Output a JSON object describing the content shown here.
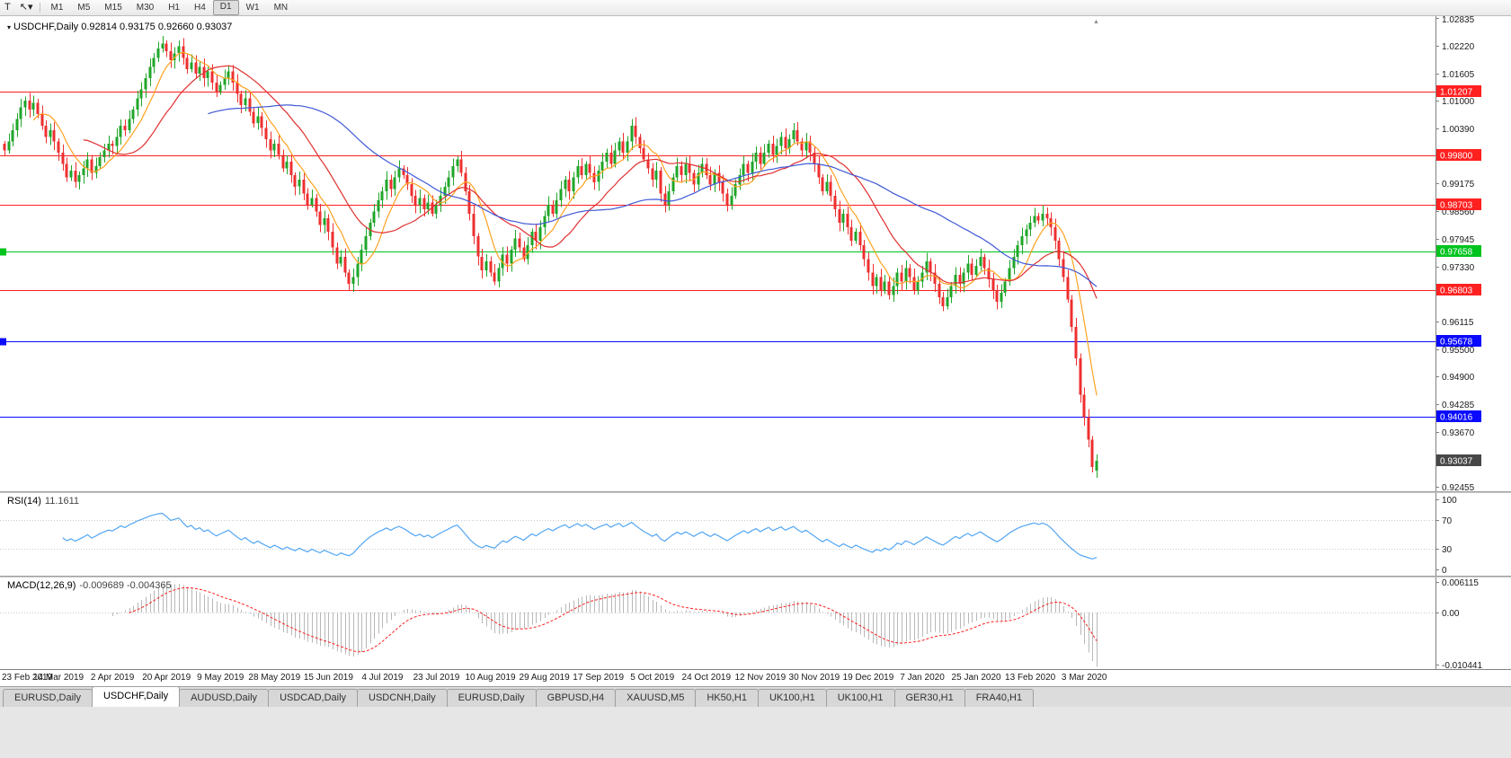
{
  "toolbar": {
    "icons": [
      {
        "name": "pointer-tool-icon",
        "glyph": "T"
      },
      {
        "name": "cursor-dropdown-icon",
        "glyph": "↖▾"
      }
    ],
    "timeframes": [
      "M1",
      "M5",
      "M15",
      "M30",
      "H1",
      "H4",
      "D1",
      "W1",
      "MN"
    ],
    "active_timeframe": "D1"
  },
  "chart_data": {
    "type": "candlestick",
    "symbol": "USDCHF,Daily",
    "quote": {
      "open": 0.92814,
      "high": 0.93175,
      "low": 0.9266,
      "close": 0.93037
    },
    "price_range": {
      "min": 0.9236,
      "max": 1.0289
    },
    "y_ticks": [
      1.02835,
      1.0222,
      1.01605,
      1.01,
      1.0039,
      0.99175,
      0.9856,
      0.97945,
      0.9733,
      0.96115,
      0.955,
      0.949,
      0.94285,
      0.9367,
      0.92455
    ],
    "levels": [
      {
        "value": 1.01207,
        "color": "#ff2020",
        "left_marker": false
      },
      {
        "value": 0.998,
        "color": "#ff2020",
        "left_marker": false
      },
      {
        "value": 0.98703,
        "color": "#ff2020",
        "left_marker": false
      },
      {
        "value": 0.97658,
        "color": "#00c31e",
        "left_marker": true
      },
      {
        "value": 0.96803,
        "color": "#ff2020",
        "left_marker": false
      },
      {
        "value": 0.95678,
        "color": "#0a0aff",
        "left_marker": true
      },
      {
        "value": 0.94016,
        "color": "#0a0aff",
        "left_marker": false
      }
    ],
    "current_price": {
      "value": 0.93037,
      "box_color": "#474747"
    },
    "x_labels": [
      "23 Feb 2019",
      "14 Mar 2019",
      "2 Apr 2019",
      "20 Apr 2019",
      "9 May 2019",
      "28 May 2019",
      "15 Jun 2019",
      "4 Jul 2019",
      "23 Jul 2019",
      "10 Aug 2019",
      "29 Aug 2019",
      "17 Sep 2019",
      "5 Oct 2019",
      "24 Oct 2019",
      "12 Nov 2019",
      "30 Nov 2019",
      "19 Dec 2019",
      "7 Jan 2020",
      "25 Jan 2020",
      "13 Feb 2020",
      "3 Mar 2020"
    ],
    "bars_per_label": 13,
    "closes": [
      0.999,
      1.001,
      1.0035,
      1.006,
      1.0085,
      1.01,
      1.008,
      1.0095,
      1.007,
      1.0045,
      1.002,
      1.0035,
      1.001,
      0.9985,
      0.996,
      0.993,
      0.9945,
      0.992,
      0.9935,
      0.995,
      0.997,
      0.994,
      0.9955,
      0.9975,
      0.999,
      1.0005,
      1.0,
      1.002,
      1.0045,
      1.0035,
      1.006,
      1.008,
      1.0105,
      1.0125,
      1.015,
      1.0175,
      1.0195,
      1.0215,
      1.0226,
      1.021,
      1.019,
      1.0205,
      1.022,
      1.0195,
      1.017,
      1.0185,
      1.016,
      1.0175,
      1.015,
      1.0165,
      1.014,
      1.012,
      1.0135,
      1.015,
      1.0165,
      1.014,
      1.0115,
      1.009,
      1.0105,
      1.0075,
      1.005,
      1.0065,
      1.004,
      1.0015,
      0.999,
      1.0005,
      0.998,
      0.995,
      0.9965,
      0.9935,
      0.991,
      0.9925,
      0.9895,
      0.987,
      0.9885,
      0.9855,
      0.9825,
      0.984,
      0.981,
      0.9775,
      0.974,
      0.9755,
      0.972,
      0.9695,
      0.971,
      0.974,
      0.977,
      0.98,
      0.983,
      0.9855,
      0.988,
      0.99,
      0.9925,
      0.9905,
      0.993,
      0.995,
      0.9935,
      0.9915,
      0.989,
      0.987,
      0.9885,
      0.986,
      0.9875,
      0.985,
      0.987,
      0.989,
      0.991,
      0.993,
      0.9955,
      0.997,
      0.994,
      0.99,
      0.985,
      0.98,
      0.9755,
      0.9725,
      0.9745,
      0.972,
      0.97,
      0.973,
      0.976,
      0.974,
      0.977,
      0.9795,
      0.9775,
      0.975,
      0.978,
      0.981,
      0.979,
      0.982,
      0.9845,
      0.987,
      0.985,
      0.988,
      0.9905,
      0.9925,
      0.99,
      0.993,
      0.9955,
      0.9935,
      0.996,
      0.994,
      0.992,
      0.9945,
      0.9965,
      0.9985,
      0.996,
      0.999,
      1.001,
      0.9985,
      1.001,
      1.0045,
      1.002,
      0.9995,
      0.997,
      0.995,
      0.9925,
      0.9945,
      0.9895,
      0.987,
      0.99,
      0.993,
      0.9955,
      0.9935,
      0.996,
      0.994,
      0.9915,
      0.994,
      0.996,
      0.9935,
      0.9915,
      0.994,
      0.992,
      0.9895,
      0.987,
      0.989,
      0.9915,
      0.9935,
      0.996,
      0.994,
      0.9965,
      0.9985,
      0.996,
      0.9985,
      1.0005,
      0.998,
      1.0,
      1.002,
      0.9995,
      1.0015,
      1.0035,
      1.001,
      0.999,
      1.001,
      0.9985,
      0.996,
      0.993,
      0.99,
      0.992,
      0.989,
      0.986,
      0.983,
      0.985,
      0.982,
      0.979,
      0.981,
      0.978,
      0.975,
      0.972,
      0.969,
      0.971,
      0.968,
      0.97,
      0.967,
      0.969,
      0.972,
      0.97,
      0.973,
      0.971,
      0.968,
      0.97,
      0.972,
      0.9745,
      0.972,
      0.9695,
      0.9665,
      0.9645,
      0.9665,
      0.969,
      0.9715,
      0.9695,
      0.972,
      0.974,
      0.9715,
      0.9735,
      0.9755,
      0.973,
      0.9705,
      0.968,
      0.9655,
      0.9675,
      0.97,
      0.973,
      0.9755,
      0.978,
      0.98,
      0.9815,
      0.983,
      0.9845,
      0.9835,
      0.985,
      0.984,
      0.982,
      0.979,
      0.975,
      0.971,
      0.966,
      0.96,
      0.953,
      0.945,
      0.94,
      0.935,
      0.929,
      0.93037
    ],
    "moving_averages": [
      {
        "period": 8,
        "color": "#ffa21f"
      },
      {
        "period": 20,
        "color": "#e03030"
      },
      {
        "period": 50,
        "color": "#3f58d6"
      }
    ],
    "colors": {
      "bull": "#1fa629",
      "bear": "#ee2f2f"
    }
  },
  "rsi": {
    "label": "RSI(14)",
    "value": "11.1611",
    "period": 14,
    "line_color": "#53a6f4",
    "levels": [
      {
        "v": 100,
        "label": "100",
        "dashed": false
      },
      {
        "v": 70,
        "label": "70",
        "dashed": true
      },
      {
        "v": 30,
        "label": "30",
        "dashed": true
      },
      {
        "v": 0,
        "label": "0",
        "dashed": false
      }
    ]
  },
  "macd": {
    "label": "MACD(12,26,9)",
    "value_text": "-0.009689 -0.004365",
    "fast": 12,
    "slow": 26,
    "signal": 9,
    "hist_color": "#b8b8b8",
    "signal_color": "#ff1e1e",
    "axis": [
      {
        "v": 0.006115,
        "label": "0.006115"
      },
      {
        "v": 0,
        "label": "0.00"
      },
      {
        "v": -0.010441,
        "label": "-0.010441"
      }
    ]
  },
  "tabs": {
    "items": [
      "EURUSD,Daily",
      "USDCHF,Daily",
      "AUDUSD,Daily",
      "USDCAD,Daily",
      "USDCNH,Daily",
      "EURUSD,Daily",
      "GBPUSD,H4",
      "XAUUSD,M5",
      "HK50,H1",
      "UK100,H1",
      "UK100,H1",
      "GER30,H1",
      "FRA40,H1"
    ],
    "active_index": 1
  }
}
